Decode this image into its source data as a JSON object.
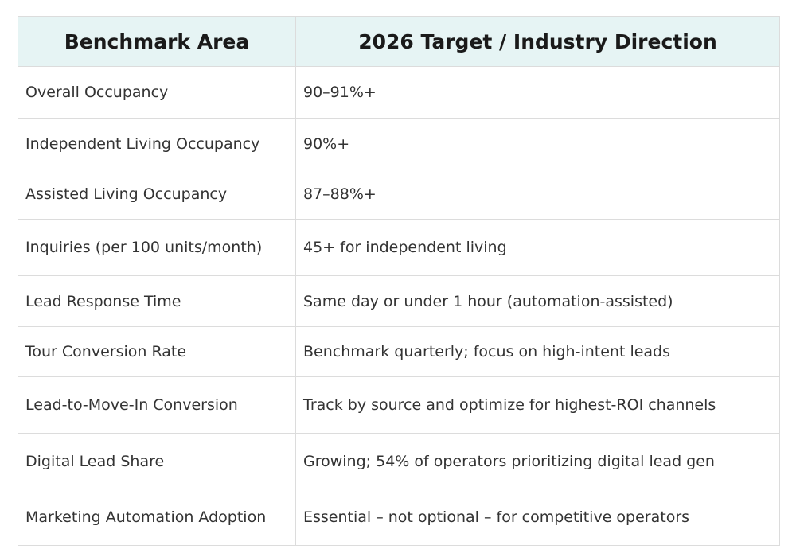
{
  "table": {
    "header": [
      "Benchmark Area",
      "2026 Target / Industry Direction"
    ],
    "rows": [
      [
        "Overall Occupancy",
        "90–91%+"
      ],
      [
        "Independent Living Occupancy",
        "90%+"
      ],
      [
        "Assisted Living Occupancy",
        "87–88%+"
      ],
      [
        "Inquiries (per 100 units/month)",
        "45+ for independent living"
      ],
      [
        "Lead Response Time",
        "Same day or under 1 hour (automation-assisted)"
      ],
      [
        "Tour Conversion Rate",
        "Benchmark quarterly; focus on high-intent leads"
      ],
      [
        "Lead-to-Move-In Conversion",
        "Track by source and optimize for highest-ROI channels"
      ],
      [
        "Digital Lead Share",
        "Growing; 54% of operators prioritizing digital lead gen"
      ],
      [
        "Marketing Automation Adoption",
        "Essential – not optional – for competitive operators"
      ]
    ]
  }
}
